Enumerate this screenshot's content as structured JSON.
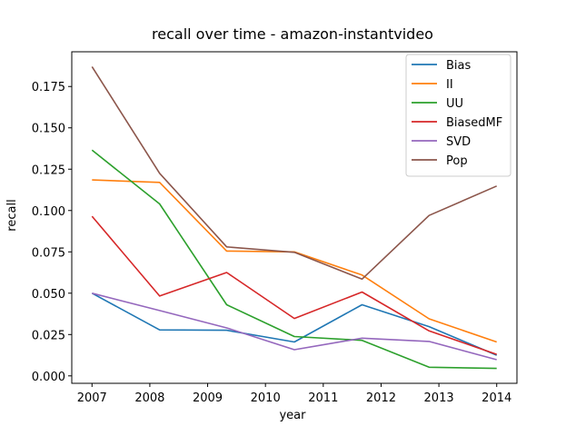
{
  "chart_data": {
    "type": "line",
    "title": "recall over time - amazon-instantvideo",
    "xlabel": "year",
    "ylabel": "recall",
    "x": [
      2007.0,
      2008.17,
      2009.33,
      2010.5,
      2011.67,
      2012.83,
      2014.0
    ],
    "xticks": [
      "2007",
      "2008",
      "2009",
      "2010",
      "2011",
      "2012",
      "2013",
      "2014"
    ],
    "yticks": [
      "0.000",
      "0.025",
      "0.050",
      "0.075",
      "0.100",
      "0.125",
      "0.150",
      "0.175"
    ],
    "xlim": [
      2006.65,
      2014.35
    ],
    "ylim": [
      -0.0045,
      0.196
    ],
    "legend_position": "top-right",
    "grid": false,
    "series": [
      {
        "name": "Bias",
        "color": "#1f77b4",
        "values": [
          0.05,
          0.0278,
          0.0276,
          0.0205,
          0.043,
          0.0298,
          0.0125
        ]
      },
      {
        "name": "II",
        "color": "#ff7f0e",
        "values": [
          0.1185,
          0.117,
          0.0755,
          0.075,
          0.061,
          0.0345,
          0.0205
        ]
      },
      {
        "name": "UU",
        "color": "#2ca02c",
        "values": [
          0.1365,
          0.104,
          0.043,
          0.0238,
          0.0215,
          0.0052,
          0.0045
        ]
      },
      {
        "name": "BiasedMF",
        "color": "#d62728",
        "values": [
          0.0965,
          0.0483,
          0.0625,
          0.0347,
          0.0507,
          0.0272,
          0.013
        ]
      },
      {
        "name": "SVD",
        "color": "#9467bd",
        "values": [
          0.05,
          0.0395,
          0.029,
          0.0158,
          0.0228,
          0.0208,
          0.0098
        ]
      },
      {
        "name": "Pop",
        "color": "#8c564b",
        "values": [
          0.187,
          0.1225,
          0.078,
          0.0747,
          0.0585,
          0.097,
          0.1148
        ]
      }
    ]
  }
}
